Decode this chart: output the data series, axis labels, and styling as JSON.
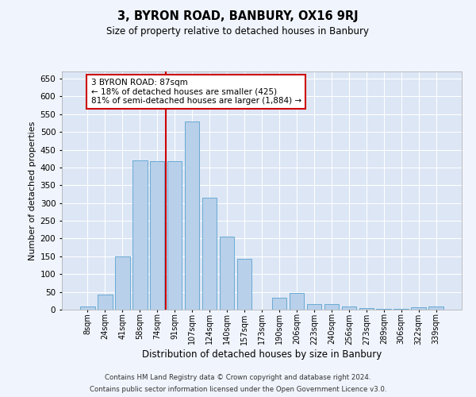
{
  "title": "3, BYRON ROAD, BANBURY, OX16 9RJ",
  "subtitle": "Size of property relative to detached houses in Banbury",
  "xlabel": "Distribution of detached houses by size in Banbury",
  "ylabel": "Number of detached properties",
  "categories": [
    "8sqm",
    "24sqm",
    "41sqm",
    "58sqm",
    "74sqm",
    "91sqm",
    "107sqm",
    "124sqm",
    "140sqm",
    "157sqm",
    "173sqm",
    "190sqm",
    "206sqm",
    "223sqm",
    "240sqm",
    "256sqm",
    "273sqm",
    "289sqm",
    "306sqm",
    "322sqm",
    "339sqm"
  ],
  "values": [
    8,
    43,
    150,
    420,
    418,
    418,
    530,
    315,
    205,
    143,
    0,
    33,
    48,
    15,
    15,
    8,
    5,
    2,
    2,
    7,
    8
  ],
  "bar_color": "#b8d0ea",
  "bar_edge_color": "#6aaad4",
  "bar_width": 0.85,
  "vline_color": "#cc0000",
  "annotation_text": "3 BYRON ROAD: 87sqm\n← 18% of detached houses are smaller (425)\n81% of semi-detached houses are larger (1,884) →",
  "annotation_box_color": "#ffffff",
  "annotation_box_edge_color": "#cc0000",
  "ylim": [
    0,
    670
  ],
  "yticks": [
    0,
    50,
    100,
    150,
    200,
    250,
    300,
    350,
    400,
    450,
    500,
    550,
    600,
    650
  ],
  "background_color": "#dce6f5",
  "fig_background_color": "#f0f4fc",
  "grid_color": "#ffffff",
  "footer1": "Contains HM Land Registry data © Crown copyright and database right 2024.",
  "footer2": "Contains public sector information licensed under the Open Government Licence v3.0."
}
